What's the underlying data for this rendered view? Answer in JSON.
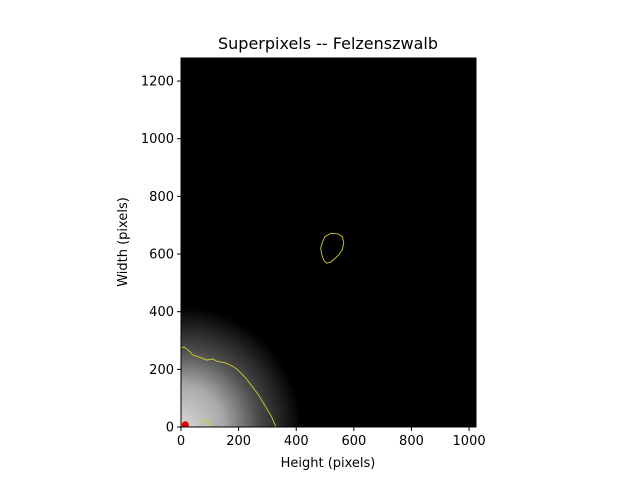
{
  "chart_data": {
    "type": "heatmap",
    "title": "Superpixels -- Felzenszwalb",
    "xlabel": "Height (pixels)",
    "ylabel": "Width (pixels)",
    "xlim": [
      0,
      1024
    ],
    "ylim": [
      0,
      1280
    ],
    "xticks": [
      0,
      200,
      400,
      600,
      800,
      1000
    ],
    "yticks": [
      0,
      200,
      400,
      600,
      800,
      1000,
      1200
    ],
    "grid": false,
    "colormap": "gray",
    "boundary_color": "#d4cc2a",
    "marker_color": "#e00000",
    "superpixel_boundaries": [
      {
        "name": "large-bright-region",
        "points": [
          [
            0,
            275
          ],
          [
            10,
            278
          ],
          [
            20,
            270
          ],
          [
            30,
            262
          ],
          [
            40,
            250
          ],
          [
            55,
            245
          ],
          [
            70,
            240
          ],
          [
            90,
            232
          ],
          [
            110,
            236
          ],
          [
            125,
            228
          ],
          [
            140,
            225
          ],
          [
            160,
            220
          ],
          [
            180,
            210
          ],
          [
            195,
            200
          ],
          [
            210,
            185
          ],
          [
            225,
            170
          ],
          [
            240,
            150
          ],
          [
            255,
            130
          ],
          [
            270,
            110
          ],
          [
            285,
            85
          ],
          [
            300,
            60
          ],
          [
            315,
            35
          ],
          [
            325,
            10
          ],
          [
            330,
            0
          ]
        ]
      },
      {
        "name": "small-blob",
        "points": [
          [
            490,
            640
          ],
          [
            500,
            660
          ],
          [
            520,
            672
          ],
          [
            545,
            670
          ],
          [
            560,
            660
          ],
          [
            565,
            640
          ],
          [
            560,
            615
          ],
          [
            548,
            598
          ],
          [
            535,
            585
          ],
          [
            520,
            572
          ],
          [
            505,
            568
          ],
          [
            495,
            580
          ],
          [
            488,
            600
          ],
          [
            485,
            620
          ],
          [
            490,
            640
          ]
        ]
      },
      {
        "name": "corner-loop",
        "points": [
          [
            70,
            0
          ],
          [
            75,
            18
          ],
          [
            90,
            25
          ],
          [
            105,
            15
          ],
          [
            100,
            0
          ]
        ]
      }
    ],
    "marker_points": [
      [
        15,
        8
      ]
    ]
  }
}
